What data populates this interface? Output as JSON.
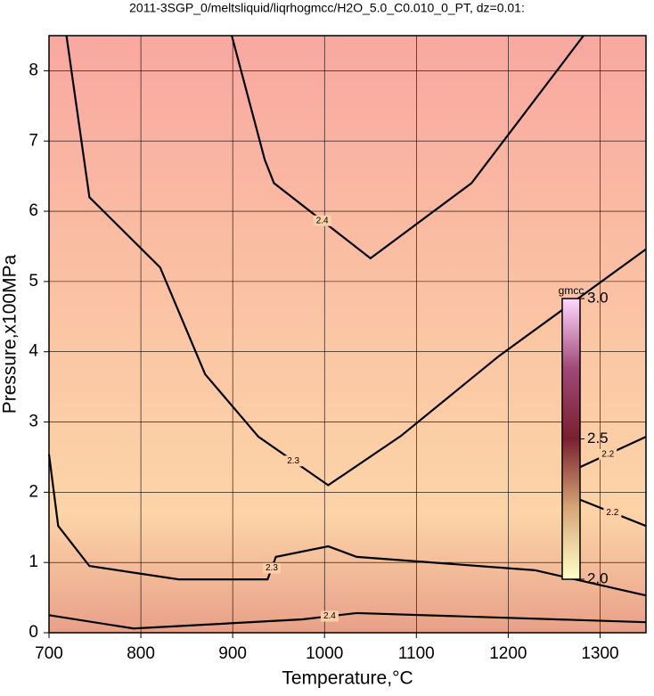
{
  "chart_data": {
    "type": "contour",
    "title": "2011-3SGP_0/meltsliquid/liqrhogmcc/H2O_5.0_C0.010_0_PT, dz=0.01:",
    "x_label": "Temperature,°C",
    "y_label": "Pressure,x100MPa",
    "xlim": [
      700,
      1350
    ],
    "ylim": [
      0,
      8.5
    ],
    "xticks": [
      700,
      800,
      900,
      1000,
      1100,
      1200,
      1300
    ],
    "yticks": [
      0,
      1,
      2,
      3,
      4,
      5,
      6,
      7,
      8
    ],
    "grid": true,
    "contours": [
      {
        "level": 2.4,
        "x": [
          899,
          935,
          945,
          1050,
          1160,
          1282
        ],
        "y": [
          8.5,
          6.73,
          6.4,
          5.33,
          6.4,
          8.5
        ]
      },
      {
        "level": 2.3,
        "x": [
          719,
          744,
          821,
          870,
          928,
          1004,
          1083,
          1190,
          1350
        ],
        "y": [
          8.5,
          6.2,
          5.2,
          3.68,
          2.79,
          2.1,
          2.8,
          3.94,
          5.46
        ]
      },
      {
        "level": 2.3,
        "x": [
          700,
          710,
          744,
          841,
          938,
          947,
          1004,
          1035,
          1229,
          1350
        ],
        "y": [
          2.54,
          1.52,
          0.95,
          0.76,
          0.76,
          1.08,
          1.23,
          1.08,
          0.89,
          0.53
        ]
      },
      {
        "level": 2.4,
        "x": [
          700,
          792,
          976,
          1035,
          1350
        ],
        "y": [
          0.25,
          0.06,
          0.19,
          0.28,
          0.15
        ]
      },
      {
        "level": 2.2,
        "x": [
          1267,
          1350
        ],
        "y": [
          2.29,
          2.79
        ]
      },
      {
        "level": 2.2,
        "x": [
          1277,
          1350
        ],
        "y": [
          1.9,
          1.52
        ]
      }
    ],
    "colorbar": {
      "label": "gmcc",
      "lim": [
        2,
        3
      ],
      "ticks": [
        {
          "value": 2,
          "label": "2.0"
        },
        2.5,
        {
          "value": 3,
          "label": "3.0"
        }
      ],
      "colors": [
        "#ffffc8",
        "#d8a878",
        "#7a2030",
        "#a04878",
        "#ffd8ff"
      ]
    }
  }
}
